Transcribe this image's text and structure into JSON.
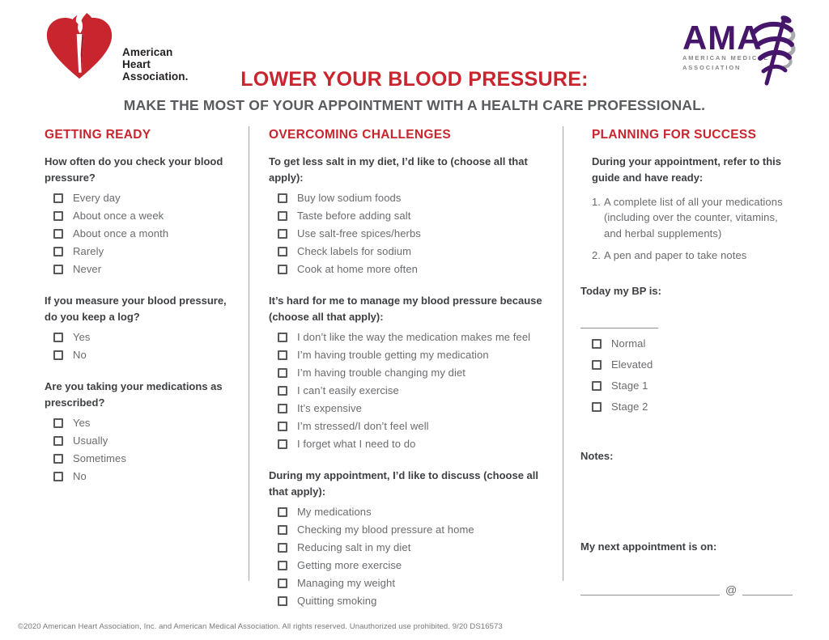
{
  "page": {
    "title": "LOWER YOUR BLOOD PRESSURE:",
    "subtitle": "MAKE THE MOST OF YOUR APPOINTMENT WITH A HEALTH CARE PROFESSIONAL.",
    "footer": "©2020 American Heart Association, Inc. and American Medical Association. All rights reserved. Unauthorized use prohibited. 9/20 DS16573"
  },
  "colors": {
    "brand_red": "#C9252F",
    "ama_purple": "#46166B",
    "question_dark": "#3F4044",
    "label_gray": "#6A6B6E",
    "divider_gray": "#A4A6A9"
  },
  "logos": {
    "aha": {
      "line1": "American",
      "line2": "Heart",
      "line3": "Association."
    },
    "ama": {
      "acronym": "AMA",
      "line1": "AMERICAN MEDICAL",
      "line2": "ASSOCIATION"
    }
  },
  "columns": [
    {
      "heading": "GETTING READY",
      "sections": [
        {
          "question": "How often do you check your blood pressure?",
          "options": [
            "Every day",
            "About once a week",
            "About once a month",
            "Rarely",
            "Never"
          ]
        },
        {
          "question": "If you measure your blood pressure, do you keep a log?",
          "options": [
            "Yes",
            "No"
          ]
        },
        {
          "question": "Are you taking your medications as prescribed?",
          "options": [
            "Yes",
            "Usually",
            "Sometimes",
            "No"
          ]
        }
      ]
    },
    {
      "heading": "OVERCOMING CHALLENGES",
      "sections": [
        {
          "question": "To get less salt in my diet, I’d like to (choose all that apply):",
          "options": [
            "Buy low sodium foods",
            "Taste before adding salt",
            "Use salt-free spices/herbs",
            "Check labels for sodium",
            "Cook at home more often"
          ]
        },
        {
          "question": "It’s hard for me to manage my blood pressure because (choose all that apply):",
          "options": [
            "I don’t like the way the medication makes me feel",
            "I’m having trouble getting my medication",
            "I’m having trouble changing my diet",
            "I can’t easily exercise",
            "It’s expensive",
            "I’m stressed/I don’t feel well",
            "I forget what I need to do"
          ]
        },
        {
          "question": "During my appointment, I’d like to discuss (choose all that apply):",
          "options": [
            "My medications",
            "Checking my blood pressure at home",
            "Reducing salt in my diet",
            "Getting more exercise",
            "Managing my weight",
            "Quitting smoking"
          ]
        }
      ]
    },
    {
      "heading": "PLANNING FOR SUCCESS",
      "intro": "During your appointment, refer to this guide and have ready:",
      "numbered_items": [
        "A complete list of all your medications (including over the counter, vitamins, and herbal supplements)",
        "A pen and paper to take notes"
      ],
      "bp_label": "Today my BP is:",
      "bp_options": [
        "Normal",
        "Elevated",
        "Stage 1",
        "Stage 2"
      ],
      "notes_label": "Notes:",
      "appointment_label": "My next appointment is on:",
      "at_symbol": "@"
    }
  ]
}
